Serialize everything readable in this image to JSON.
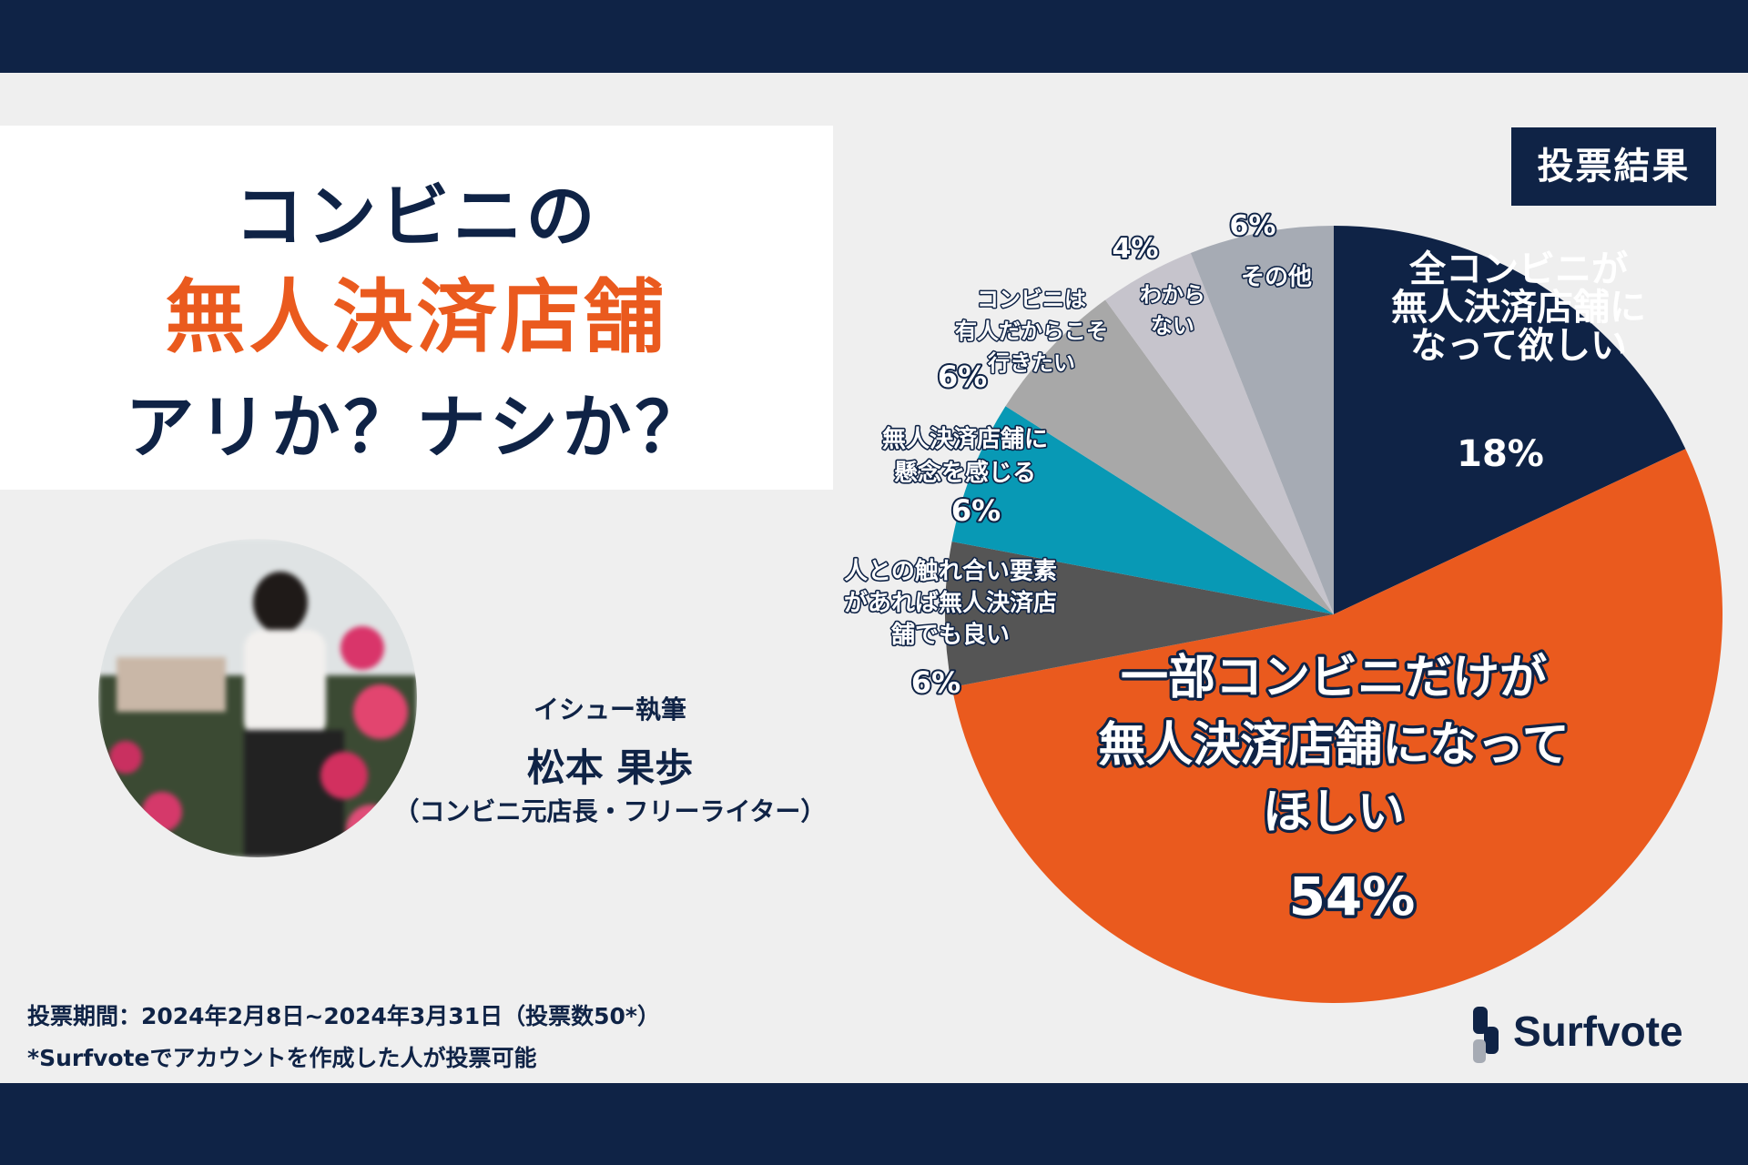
{
  "title": {
    "line1": "コンビニの",
    "line2": "無人決済店舗",
    "line3": "アリか？ナシか？"
  },
  "author": {
    "role": "イシュー執筆",
    "name": "松本 果歩",
    "description": "（コンビニ元店長・フリーライター）"
  },
  "footer": {
    "period": "投票期間：2024年2月8日~2024年3月31日（投票数50*）",
    "note": "*Surfvoteでアカウントを作成した人が投票可能"
  },
  "badge": "投票結果",
  "logo": {
    "text": "Surfvote",
    "icon": "surfvote-logo-icon"
  },
  "colors": {
    "navy": "#0f2346",
    "orange": "#ea5a1e",
    "teal": "#0899b5",
    "dark_gray": "#555555",
    "gray": "#a8a8a8",
    "light_gray": "#c6c4cc",
    "slate": "#a6abb4"
  },
  "chart_data": {
    "type": "pie",
    "title": "投票結果",
    "start": "12 o'clock, clockwise",
    "slices": [
      {
        "label": "全コンビニが\n無人決済店舗に\nなって欲しい",
        "value": 18,
        "percent_label": "18%",
        "color": "#0f2346"
      },
      {
        "label": "一部コンビニだけが\n無人決済店舗になって\nほしい",
        "value": 54,
        "percent_label": "54%",
        "color": "#ea5a1e"
      },
      {
        "label": "人との触れ合い要素\nがあれば無人決済店\n舗でも良い",
        "value": 6,
        "percent_label": "6%",
        "color": "#555555"
      },
      {
        "label": "無人決済店舗に\n懸念を感じる",
        "value": 6,
        "percent_label": "6%",
        "color": "#0899b5"
      },
      {
        "label": "コンビニは\n有人だからこそ\n行きたい",
        "value": 6,
        "percent_label": "6%",
        "color": "#a8a8a8"
      },
      {
        "label": "わから\nない",
        "value": 4,
        "percent_label": "4%",
        "color": "#c6c4cc"
      },
      {
        "label": "その他",
        "value": 6,
        "percent_label": "6%",
        "color": "#a6abb4"
      }
    ]
  }
}
